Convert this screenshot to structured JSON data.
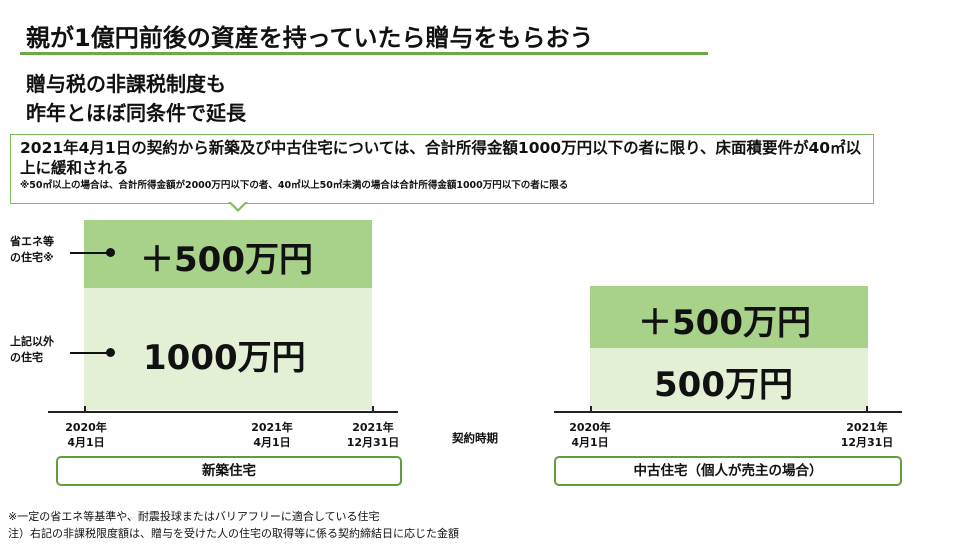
{
  "title": "親が1億円前後の資産を持っていたら贈与をもらおう",
  "subheading": [
    "贈与税の非課税制度も",
    "昨年とほぼ同条件で延長"
  ],
  "callout": {
    "main": "2021年4月1日の契約から新築及び中古住宅については、合計所得金額1000万円以下の者に限り、床面積要件が40㎡以上に緩和される",
    "note": "※50㎡以上の場合は、合計所得金額が2000万円以下の者、40㎡以上50㎡未満の場合は合計所得金額1000万円以下の者に限る"
  },
  "side_labels": {
    "eco": [
      "省エネ等",
      "の住宅※"
    ],
    "other": [
      "上記以外",
      "の住宅"
    ]
  },
  "new_house": {
    "top_amount": "＋500万円",
    "bottom_amount": "1000万円",
    "dates": {
      "start": [
        "2020年",
        "4月1日"
      ],
      "mid": [
        "2021年",
        "4月1日"
      ],
      "end": [
        "2021年",
        "12月31日"
      ]
    },
    "category": "新築住宅"
  },
  "used_house": {
    "top_amount": "＋500万円",
    "bottom_amount": "500万円",
    "dates": {
      "start": [
        "2020年",
        "4月1日"
      ],
      "end": [
        "2021年",
        "12月31日"
      ]
    },
    "category": "中古住宅（個人が売主の場合）"
  },
  "axis_label": "契約時期",
  "footnotes": [
    "※一定の省エネ等基準や、耐震投球またはバリアフリーに適合している住宅",
    "注）右記の非課税限度額は、贈与を受けた人の住宅の取得等に係る契約締結日に応じた金額"
  ],
  "colors": {
    "accent_green": "#6aab46",
    "block_dark": "#a8d18a",
    "block_light": "#e3f0d6"
  }
}
